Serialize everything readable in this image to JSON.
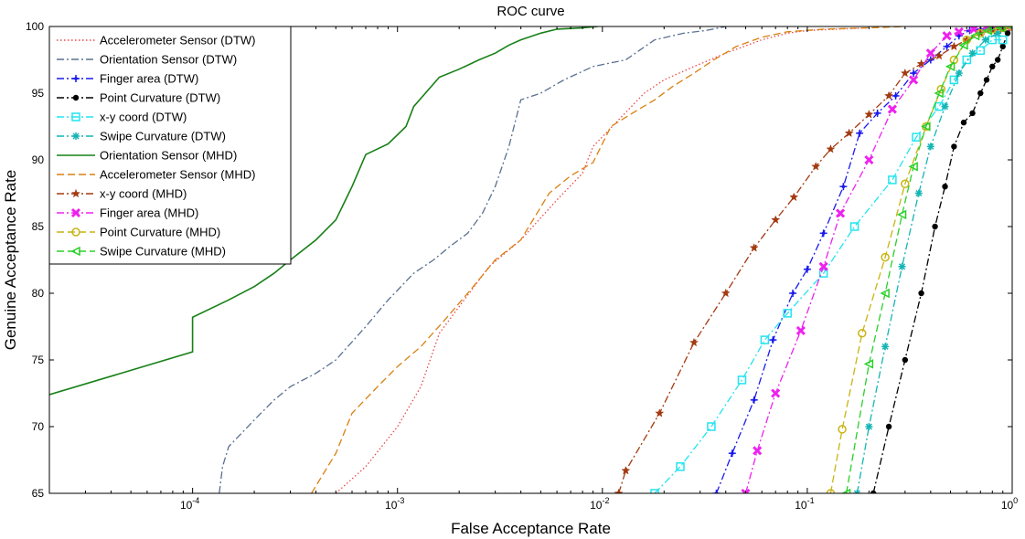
{
  "chart_data": {
    "type": "line",
    "title": "ROC curve",
    "xlabel": "False Acceptance Rate",
    "ylabel": "Genuine Acceptance Rate",
    "xscale": "log",
    "xlim": [
      2e-05,
      1
    ],
    "ylim": [
      65,
      100
    ],
    "grid": false,
    "legend_position": "top-left",
    "x_ticks": [
      {
        "value": 0.0001,
        "base": "10",
        "exp": "-4"
      },
      {
        "value": 0.001,
        "base": "10",
        "exp": "-3"
      },
      {
        "value": 0.01,
        "base": "10",
        "exp": "-2"
      },
      {
        "value": 0.1,
        "base": "10",
        "exp": "-1"
      },
      {
        "value": 1,
        "base": "10",
        "exp": "0"
      }
    ],
    "y_ticks": [
      65,
      70,
      75,
      80,
      85,
      90,
      95,
      100
    ],
    "series": [
      {
        "name": "Accelerometer Sensor (DTW)",
        "color": "#e8484a",
        "dash": "dotted",
        "marker": "none",
        "x": [
          0.0005,
          0.0007,
          0.001,
          0.0013,
          0.0016,
          0.002,
          0.0028,
          0.004,
          0.006,
          0.008,
          0.009,
          0.012,
          0.016,
          0.02,
          0.028,
          0.04,
          0.06,
          0.08,
          0.1,
          0.14,
          0.2
        ],
        "y": [
          65,
          67,
          70,
          73,
          77,
          79,
          82,
          84,
          87,
          89,
          91,
          93,
          95,
          96,
          97,
          98,
          99,
          99.5,
          99.7,
          99.8,
          99.9
        ]
      },
      {
        "name": "Orientation Sensor (DTW)",
        "color": "#5a7090",
        "dash": "dashdot",
        "marker": "none",
        "x": [
          0.000135,
          0.00014,
          0.00015,
          0.0002,
          0.00025,
          0.0003,
          0.0004,
          0.0005,
          0.0007,
          0.0009,
          0.0012,
          0.0015,
          0.0018,
          0.0022,
          0.0026,
          0.003,
          0.0035,
          0.004,
          0.005,
          0.0065,
          0.009,
          0.013,
          0.018,
          0.025,
          0.032,
          0.04
        ],
        "y": [
          65,
          67,
          68.5,
          70.5,
          72,
          73,
          74,
          75,
          77.5,
          79.5,
          81.5,
          82.5,
          83.5,
          84.5,
          86,
          88,
          91,
          94.5,
          95,
          96,
          97,
          97.5,
          99,
          99.5,
          99.7,
          100
        ]
      },
      {
        "name": "Finger area (DTW)",
        "color": "#1a1aee",
        "dash": "dashdot",
        "marker": "plus",
        "x": [
          0.036,
          0.043,
          0.055,
          0.068,
          0.085,
          0.1,
          0.12,
          0.15,
          0.18,
          0.22,
          0.27,
          0.33,
          0.4,
          0.48,
          0.55,
          0.62,
          0.7,
          0.8,
          0.9,
          1
        ],
        "y": [
          65,
          68,
          72,
          76.5,
          80,
          81.8,
          84.5,
          88,
          92,
          93.5,
          94.8,
          96.5,
          97.5,
          98.5,
          99.3,
          99.7,
          99.8,
          99.9,
          100,
          100
        ]
      },
      {
        "name": "Point Curvature (DTW)",
        "color": "#000000",
        "dash": "dashdot",
        "marker": "dot",
        "x": [
          0.21,
          0.25,
          0.3,
          0.36,
          0.42,
          0.47,
          0.52,
          0.58,
          0.64,
          0.7,
          0.75,
          0.8,
          0.85,
          0.9,
          0.95,
          1
        ],
        "y": [
          65,
          70,
          75,
          80,
          85,
          88,
          91,
          92.8,
          93.5,
          95,
          96,
          97,
          97.5,
          98.5,
          99.5,
          100
        ]
      },
      {
        "name": "x-y coord (DTW)",
        "color": "#22e4f0",
        "dash": "dashdot",
        "marker": "square",
        "x": [
          0.018,
          0.024,
          0.034,
          0.048,
          0.062,
          0.08,
          0.12,
          0.17,
          0.26,
          0.34,
          0.44,
          0.52,
          0.6,
          0.7,
          0.8,
          0.9
        ],
        "y": [
          65,
          67,
          70,
          73.5,
          76.5,
          78.5,
          81.5,
          85,
          88.5,
          91.7,
          94,
          96,
          97.5,
          98.2,
          99,
          99
        ]
      },
      {
        "name": "Swipe Curvature (DTW)",
        "color": "#14b4b4",
        "dash": "dashdot",
        "marker": "asterisk",
        "x": [
          0.175,
          0.2,
          0.24,
          0.29,
          0.35,
          0.4,
          0.47,
          0.55,
          0.64,
          0.74,
          0.85,
          1
        ],
        "y": [
          65,
          70,
          76,
          82,
          87.5,
          91,
          94,
          96.5,
          98,
          99,
          99.5,
          100
        ]
      },
      {
        "name": "Orientation Sensor (MHD)",
        "color": "#178017",
        "dash": "solid",
        "marker": "none",
        "x": [
          2e-05,
          0.0001,
          0.0001,
          0.00015,
          0.0002,
          0.00025,
          0.0003,
          0.0004,
          0.0005,
          0.0006,
          0.0007,
          0.0009,
          0.0011,
          0.0012,
          0.0016,
          0.002,
          0.0025,
          0.003,
          0.0035,
          0.004,
          0.005,
          0.006,
          0.008,
          0.0095
        ],
        "y": [
          72.4,
          75.6,
          78.2,
          79.5,
          80.5,
          81.5,
          82.5,
          84,
          85.5,
          88,
          90.4,
          91.2,
          92.5,
          94,
          96.2,
          96.8,
          97.5,
          98,
          98.6,
          99,
          99.5,
          99.8,
          99.9,
          100
        ]
      },
      {
        "name": "Accelerometer Sensor (MHD)",
        "color": "#d98010",
        "dash": "dashed",
        "marker": "none",
        "x": [
          0.00038,
          0.0005,
          0.0006,
          0.0008,
          0.001,
          0.0013,
          0.0017,
          0.0022,
          0.003,
          0.004,
          0.0055,
          0.007,
          0.009,
          0.011,
          0.014,
          0.018,
          0.022,
          0.028,
          0.035,
          0.045,
          0.06,
          0.08,
          0.12,
          0.2,
          0.3
        ],
        "y": [
          65,
          68,
          71,
          73,
          74.5,
          76,
          78,
          80,
          82.5,
          84,
          87.5,
          88.8,
          89.8,
          92.5,
          93.5,
          94.5,
          95.5,
          96.5,
          97.5,
          98.5,
          99.2,
          99.6,
          99.8,
          99.9,
          100
        ]
      },
      {
        "name": "x-y coord (MHD)",
        "color": "#a33a10",
        "dash": "dashdot",
        "marker": "star",
        "x": [
          0.012,
          0.013,
          0.019,
          0.028,
          0.04,
          0.055,
          0.07,
          0.086,
          0.11,
          0.13,
          0.16,
          0.2,
          0.25,
          0.3,
          0.36,
          0.44,
          0.52,
          0.6,
          0.7,
          0.8,
          0.9,
          1
        ],
        "y": [
          65,
          66.7,
          71,
          76.3,
          80,
          83.4,
          85.5,
          87.2,
          89.5,
          90.8,
          92,
          93.4,
          94.8,
          96.5,
          97.2,
          97.8,
          98.5,
          99,
          99.5,
          99.7,
          99.8,
          99.9
        ]
      },
      {
        "name": "Finger area (MHD)",
        "color": "#ee22ee",
        "dash": "dashdot",
        "marker": "x",
        "x": [
          0.05,
          0.057,
          0.07,
          0.093,
          0.12,
          0.145,
          0.2,
          0.26,
          0.33,
          0.4,
          0.48,
          0.55,
          0.65,
          0.75,
          0.85,
          1
        ],
        "y": [
          65,
          68.2,
          72.5,
          77.2,
          82,
          86,
          90,
          93.8,
          96,
          98,
          99.3,
          99.6,
          99.8,
          99.9,
          100,
          100
        ]
      },
      {
        "name": "Point Curvature (MHD)",
        "color": "#c8b414",
        "dash": "dashed",
        "marker": "circle",
        "x": [
          0.13,
          0.148,
          0.185,
          0.24,
          0.3,
          0.38,
          0.45,
          0.52,
          0.6,
          0.7,
          0.8,
          0.9,
          1
        ],
        "y": [
          65,
          69.8,
          77,
          82.7,
          88.2,
          92.5,
          95.3,
          97.5,
          99,
          99.5,
          99.8,
          99.9,
          100
        ]
      },
      {
        "name": "Swipe Curvature (MHD)",
        "color": "#28d028",
        "dash": "dashed",
        "marker": "triangle",
        "x": [
          0.155,
          0.2,
          0.24,
          0.29,
          0.33,
          0.38,
          0.44,
          0.5,
          0.58,
          0.66,
          0.76,
          0.88,
          1
        ],
        "y": [
          65,
          74.7,
          80,
          85.9,
          89.5,
          92.5,
          95,
          97,
          98.6,
          99.3,
          99.7,
          99.9,
          100
        ]
      }
    ]
  }
}
